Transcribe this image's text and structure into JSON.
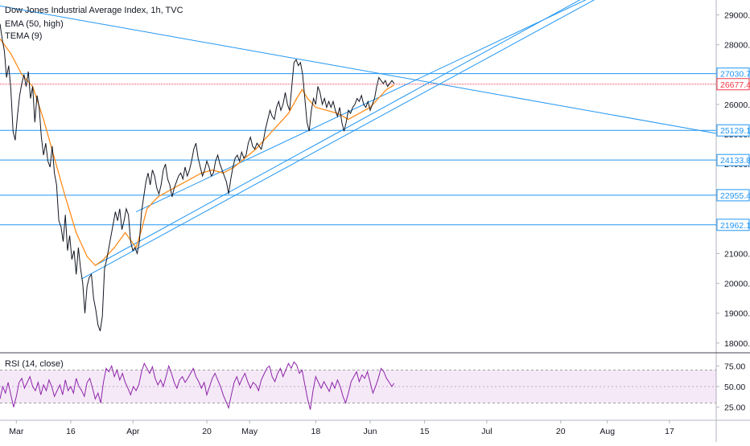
{
  "chart_data": [
    {
      "type": "line",
      "title": "Dow Jones Industrial Average Index, 1h, TVC",
      "indicators": [
        "EMA (50, high)",
        "TEMA (9)"
      ],
      "x_ticks": [
        "Mar",
        "16",
        "Apr",
        "20",
        "May",
        "18",
        "Jun",
        "15",
        "Jul",
        "20",
        "Aug",
        "17"
      ],
      "y_ticks": [
        18000,
        19000,
        20000,
        21000,
        22000,
        23000,
        24000,
        25000,
        26000,
        27000,
        28000,
        29000
      ],
      "y_tick_labels": [
        "18000.0",
        "19000.0",
        "20000.0",
        "21000.0",
        "22000.0",
        "23000.0",
        "24000.0",
        "25000.0",
        "26000.0",
        "27000.0",
        "28000.0",
        "29000.0"
      ],
      "ylim": [
        17700,
        29500
      ],
      "horizontal_levels": [
        {
          "value": 27030.7,
          "label": "27030.7"
        },
        {
          "value": 25129.1,
          "label": "25129.1"
        },
        {
          "value": 24133.8,
          "label": "24133.8"
        },
        {
          "value": 22955.4,
          "label": "22955.4"
        },
        {
          "value": 21962.1,
          "label": "21962.1"
        }
      ],
      "last_price": {
        "value": 26677.4,
        "label": "26677.4"
      },
      "series": [
        {
          "name": "TEMA (9)",
          "color": "#131722",
          "x": [
            0,
            0.02,
            0.05,
            0.08,
            0.1,
            0.12,
            0.15,
            0.18,
            0.2,
            0.23,
            0.26,
            0.29,
            0.32,
            0.35,
            0.38,
            0.41,
            0.44,
            0.47,
            0.5,
            0.52,
            0.54,
            0.56,
            0.58,
            0.6,
            0.62,
            0.64,
            0.66,
            0.68,
            0.7,
            0.72,
            0.74,
            0.76,
            0.78,
            0.8,
            0.82,
            0.84,
            0.86,
            0.88,
            0.9,
            0.92,
            0.94,
            0.96,
            0.98,
            1.0,
            1.02,
            1.04,
            1.06,
            1.08,
            1.1,
            1.12,
            1.15,
            1.18,
            1.21,
            1.24,
            1.27,
            1.3,
            1.33,
            1.36,
            1.39,
            1.42,
            1.45,
            1.48,
            1.51,
            1.54,
            1.57,
            1.6,
            1.63,
            1.66,
            1.69,
            1.72,
            1.75,
            1.78,
            1.81,
            1.84,
            1.87,
            1.9,
            1.93,
            1.96,
            1.99,
            2.02,
            2.05,
            2.08,
            2.11,
            2.14,
            2.17,
            2.2,
            2.23,
            2.26,
            2.29,
            2.32,
            2.35,
            2.38,
            2.41,
            2.44,
            2.47,
            2.5,
            2.53,
            2.56,
            2.59,
            2.62,
            2.65,
            2.68,
            2.71,
            2.74,
            2.77,
            2.8,
            2.83,
            2.86,
            2.89,
            2.92,
            2.95,
            2.98,
            3.01,
            3.04,
            3.07,
            3.1,
            3.13,
            3.16,
            3.19,
            3.22,
            3.25,
            3.28,
            3.31,
            3.34,
            3.37,
            3.4,
            3.43,
            3.46,
            3.49,
            3.52,
            3.55,
            3.58,
            3.61,
            3.64,
            3.67,
            3.7,
            3.73,
            3.76,
            3.79,
            3.82,
            3.85,
            3.88,
            3.91,
            3.94,
            3.97,
            4.0,
            4.03,
            4.06,
            4.09,
            4.12,
            4.15,
            4.18,
            4.21,
            4.24,
            4.27,
            4.3,
            4.33,
            4.36,
            4.39,
            4.42,
            4.45,
            4.48,
            4.51,
            4.54,
            4.57,
            4.6,
            4.63,
            4.66,
            4.69,
            4.72,
            4.75,
            4.78,
            4.81,
            4.84,
            4.87,
            4.9,
            4.93,
            4.96,
            4.99,
            5.02,
            5.05,
            5.08,
            5.11,
            5.14,
            5.17,
            5.2,
            5.23,
            5.26,
            5.29,
            5.32,
            5.35,
            5.38,
            5.41,
            5.44,
            5.47,
            5.5,
            5.53,
            5.56,
            5.59,
            5.62,
            5.65,
            5.68,
            5.71,
            5.74,
            5.77,
            5.8,
            5.83,
            5.86,
            5.89,
            5.92,
            5.95,
            5.98,
            6.01,
            6.04,
            6.07,
            6.1,
            6.13,
            6.16,
            6.19,
            6.22,
            6.25,
            6.28,
            6.31,
            6.34,
            6.37,
            6.4,
            6.43,
            6.46,
            6.49,
            6.52,
            6.55,
            6.58,
            6.61,
            6.64,
            6.67,
            6.7,
            6.73,
            6.76,
            6.79,
            6.82,
            6.85,
            6.88,
            6.91,
            6.94,
            6.97,
            7.0,
            7.03,
            7.06,
            7.09,
            7.12,
            7.15,
            7.18,
            7.21,
            7.24,
            7.27,
            7.3,
            7.33,
            7.36,
            7.39,
            7.42,
            7.45,
            7.48,
            7.51,
            7.54,
            7.57,
            7.6,
            7.63,
            7.66,
            7.69,
            7.72,
            7.75,
            7.78,
            7.81,
            7.84,
            7.87,
            7.9,
            7.93,
            7.96,
            7.99,
            8.02,
            8.05,
            8.08,
            8.11,
            8.14,
            8.17,
            8.2,
            8.23,
            8.26,
            8.29,
            8.32,
            8.35,
            8.38,
            8.41,
            8.44,
            8.47,
            8.5,
            8.53,
            8.56,
            8.59,
            8.62,
            8.65,
            8.68,
            8.71,
            8.74,
            8.77,
            8.8,
            8.83,
            8.86,
            8.89,
            8.92,
            8.95,
            8.98,
            9.01,
            9.04,
            9.07,
            9.1,
            9.13,
            9.16,
            9.19,
            9.22,
            9.25,
            9.28,
            9.31,
            9.34,
            9.37,
            9.4,
            9.43,
            9.46,
            9.49,
            9.52,
            9.55,
            9.58,
            9.61,
            9.64,
            9.67,
            9.7,
            9.73,
            9.76,
            9.79,
            9.82,
            9.85,
            9.88,
            9.91,
            9.94,
            9.97,
            10.0,
            10.03,
            10.06,
            10.09,
            10.12,
            10.15,
            10.18,
            10.21,
            10.24,
            10.27,
            10.3,
            10.33,
            10.36,
            10.39,
            10.42,
            10.45,
            10.48,
            10.51,
            10.54,
            10.57,
            10.6,
            10.63,
            10.66,
            10.69,
            10.72,
            10.75,
            10.78,
            10.81,
            10.84,
            10.87,
            10.9,
            10.93,
            10.96,
            10.99,
            11.02,
            11.05,
            11.08,
            11.11,
            11.14,
            11.17,
            11.2,
            11.23,
            11.26,
            11.29,
            11.32,
            11.35,
            11.38,
            11.41,
            11.44,
            11.47,
            11.5,
            11.53,
            11.56,
            11.59,
            11.62,
            11.65,
            11.68,
            11.71,
            11.74,
            11.77,
            11.8,
            11.83,
            11.86,
            11.89,
            11.92,
            11.95,
            11.98,
            12.01,
            12.04,
            12.07,
            12.1,
            12.13,
            12.16,
            12.19,
            12.22,
            12.25,
            12.28,
            12.31,
            12.34,
            12.37,
            12.4,
            12.43,
            12.46,
            12.49,
            12.52,
            12.55,
            12.58,
            12.61,
            12.64,
            12.67,
            12.7,
            12.73,
            12.76,
            12.79,
            12.82,
            12.85,
            12.88,
            12.91,
            12.94,
            12.97,
            13.0,
            13.03,
            13.06,
            13.09,
            13.12,
            13.15,
            13.18,
            13.21,
            13.24,
            13.27,
            13.3,
            13.33,
            13.36,
            13.39,
            13.42,
            13.45,
            13.48,
            13.51,
            13.54,
            13.57,
            13.6,
            13.63,
            13.66,
            13.69,
            13.72,
            13.75,
            13.78,
            13.81,
            13.84,
            13.87,
            13.9,
            13.93,
            13.96,
            13.99,
            14.02,
            14.05,
            14.08,
            14.11,
            14.14,
            14.17,
            14.2,
            14.23,
            14.26,
            14.29,
            14.32,
            14.35,
            14.38,
            14.41,
            14.44,
            14.47,
            14.5,
            14.53,
            14.56,
            14.59,
            14.62,
            14.65,
            14.68,
            14.71,
            14.74,
            14.77,
            14.8,
            14.83,
            14.86,
            14.89,
            14.92,
            14.95,
            14.98,
            15.01,
            15.04,
            15.07,
            15.1,
            15.13,
            15.16,
            15.19,
            15.22,
            15.25,
            15.28,
            15.31,
            15.34,
            15.37,
            15.4,
            15.43,
            15.46,
            15.49,
            15.52,
            15.55,
            15.58,
            15.61,
            15.64,
            15.67,
            15.7,
            15.73,
            15.76,
            15.79,
            15.82,
            15.85,
            15.88,
            15.91,
            15.94,
            15.97,
            16.0
          ]
        }
      ]
    }
  ]
}
